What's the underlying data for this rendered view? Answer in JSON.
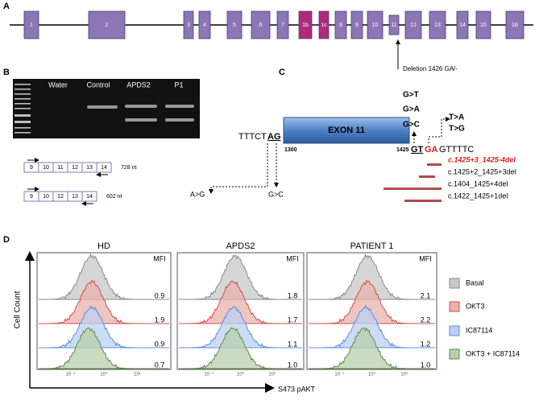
{
  "panel_a": {
    "label": "A",
    "exons": [
      "1",
      "2",
      "3",
      "4",
      "5",
      "6",
      "7",
      "1b",
      "1c",
      "8",
      "9",
      "10",
      "11",
      "12",
      "13",
      "14",
      "15",
      "16"
    ],
    "annotation": "Deletion 1426 GA/-"
  },
  "panel_b": {
    "label": "B",
    "lanes": [
      "Water",
      "Control",
      "APDS2",
      "P1"
    ],
    "constructs": [
      {
        "exons": [
          "9",
          "10",
          "11",
          "12",
          "13",
          "14"
        ],
        "size": "728 nt"
      },
      {
        "exons": [
          "9",
          "10",
          "12",
          "13",
          "14"
        ],
        "size": "602 nt"
      }
    ]
  },
  "panel_c": {
    "label": "C",
    "exon": "EXON 11",
    "left_seq": "TTTCT",
    "left_splice": "AG",
    "pos_start": "1300",
    "pos_end": "1425",
    "right_splice": "GT",
    "right_mut": "GA",
    "right_seq": "GTTTTC",
    "mutations_donor": [
      "G>T",
      "G>A",
      "G>C"
    ],
    "mutations_t": [
      "T>A",
      "T>G"
    ],
    "mutation_acceptor_a": "A>G",
    "mutation_acceptor_g": "G>C",
    "deletions": [
      "c.1425+3_1425-4del",
      "c.1425+2_1425+3del",
      "c.1404_1425+4del",
      "c.1422_1425+1del"
    ]
  },
  "panel_d": {
    "label": "D",
    "y_label": "Cell Count",
    "x_label": "S473  pAKT",
    "tick_labels": [
      "10⁻¹",
      "10⁰",
      "10¹"
    ],
    "mfi_label": "MFI",
    "panels": [
      {
        "title": "HD",
        "mfi": [
          "0.9",
          "1.9",
          "0.9",
          "0.7"
        ]
      },
      {
        "title": "APDS2",
        "mfi": [
          "1.8",
          "1.7",
          "1.1",
          "1.0"
        ]
      },
      {
        "title": "PATIENT 1",
        "mfi": [
          "2.1",
          "2.2",
          "1.2",
          "1.0"
        ]
      }
    ],
    "legend": [
      "Basal",
      "OKT3",
      "IC87114",
      "OKT3 + IC87114"
    ]
  }
}
